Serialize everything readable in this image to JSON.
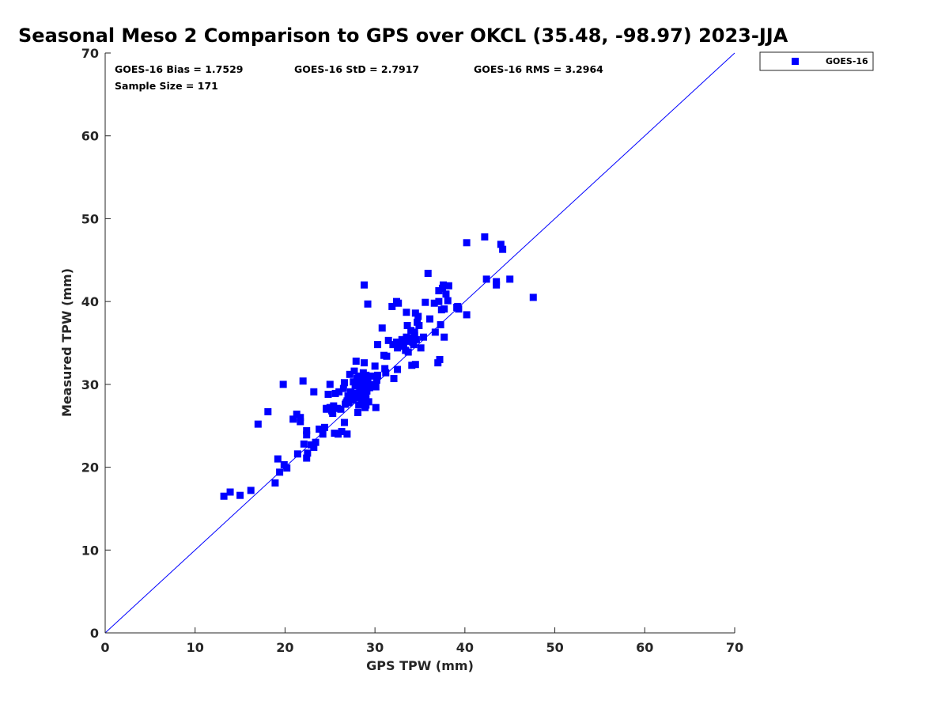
{
  "chart_data": {
    "type": "scatter",
    "title": "Seasonal Meso 2 Comparison to GPS over OKCL (35.48, -98.97) 2023-JJA",
    "xlabel": "GPS TPW (mm)",
    "ylabel": "Measured TPW (mm)",
    "xlim": [
      0,
      70
    ],
    "ylim": [
      0,
      70
    ],
    "xticks": [
      0,
      10,
      20,
      30,
      40,
      50,
      60,
      70
    ],
    "yticks": [
      0,
      10,
      20,
      30,
      40,
      50,
      60,
      70
    ],
    "grid": false,
    "legend_position": "top-right outside",
    "reference_line": {
      "label": "1:1",
      "from": [
        0,
        0
      ],
      "to": [
        70,
        70
      ],
      "color": "#0000ff"
    },
    "stats": {
      "bias": "GOES-16 Bias = 1.7529",
      "std": "GOES-16 StD = 2.7917",
      "rms": "GOES-16 RMS = 3.2964",
      "sample": "Sample Size = 171"
    },
    "series": [
      {
        "name": "GOES-16",
        "color": "#0000ff",
        "marker": "square",
        "points": [
          [
            13.2,
            16.5
          ],
          [
            13.9,
            17.0
          ],
          [
            15.0,
            16.6
          ],
          [
            16.2,
            17.2
          ],
          [
            17.0,
            25.2
          ],
          [
            18.1,
            26.7
          ],
          [
            18.9,
            18.1
          ],
          [
            19.2,
            21.0
          ],
          [
            19.4,
            19.4
          ],
          [
            19.8,
            30.0
          ],
          [
            19.9,
            20.3
          ],
          [
            20.2,
            19.9
          ],
          [
            20.9,
            25.8
          ],
          [
            21.3,
            26.4
          ],
          [
            21.4,
            21.6
          ],
          [
            21.7,
            25.5
          ],
          [
            21.7,
            26.0
          ],
          [
            22.0,
            30.4
          ],
          [
            22.1,
            22.8
          ],
          [
            22.4,
            24.4
          ],
          [
            22.4,
            21.1
          ],
          [
            22.4,
            23.9
          ],
          [
            22.5,
            21.7
          ],
          [
            22.9,
            22.7
          ],
          [
            23.2,
            29.1
          ],
          [
            23.2,
            22.4
          ],
          [
            23.4,
            23.0
          ],
          [
            23.8,
            24.6
          ],
          [
            24.2,
            24.0
          ],
          [
            24.4,
            24.8
          ],
          [
            24.6,
            27.1
          ],
          [
            24.8,
            28.8
          ],
          [
            25.0,
            30.0
          ],
          [
            25.0,
            27.2
          ],
          [
            25.2,
            26.8
          ],
          [
            25.3,
            26.5
          ],
          [
            25.4,
            27.4
          ],
          [
            25.5,
            24.1
          ],
          [
            25.6,
            28.9
          ],
          [
            25.9,
            24.0
          ],
          [
            26.0,
            29.1
          ],
          [
            26.2,
            27.0
          ],
          [
            26.3,
            24.3
          ],
          [
            26.5,
            29.5
          ],
          [
            26.6,
            25.4
          ],
          [
            26.6,
            30.2
          ],
          [
            26.7,
            27.6
          ],
          [
            26.9,
            24.0
          ],
          [
            26.9,
            28.0
          ],
          [
            27.0,
            28.6
          ],
          [
            27.1,
            27.8
          ],
          [
            27.2,
            31.2
          ],
          [
            27.3,
            29.1
          ],
          [
            27.5,
            28.1
          ],
          [
            27.6,
            30.3
          ],
          [
            27.7,
            31.6
          ],
          [
            27.8,
            28.9
          ],
          [
            27.8,
            29.8
          ],
          [
            27.9,
            32.8
          ],
          [
            28.0,
            30.7
          ],
          [
            28.0,
            28.4
          ],
          [
            28.1,
            26.6
          ],
          [
            28.1,
            30.0
          ],
          [
            28.2,
            27.5
          ],
          [
            28.2,
            31.0
          ],
          [
            28.3,
            29.5
          ],
          [
            28.4,
            28.9
          ],
          [
            28.4,
            30.5
          ],
          [
            28.5,
            27.9
          ],
          [
            28.5,
            29.3
          ],
          [
            28.6,
            28.3
          ],
          [
            28.7,
            31.4
          ],
          [
            28.7,
            30.2
          ],
          [
            28.8,
            32.6
          ],
          [
            28.8,
            42.0
          ],
          [
            28.9,
            27.2
          ],
          [
            28.9,
            30.9
          ],
          [
            28.9,
            29.9
          ],
          [
            29.0,
            28.6
          ],
          [
            29.0,
            27.5
          ],
          [
            29.0,
            31.1
          ],
          [
            29.1,
            29.2
          ],
          [
            29.2,
            30.3
          ],
          [
            29.2,
            39.7
          ],
          [
            29.3,
            27.9
          ],
          [
            29.4,
            29.6
          ],
          [
            29.7,
            31.0
          ],
          [
            29.8,
            30.0
          ],
          [
            30.0,
            32.2
          ],
          [
            30.1,
            29.7
          ],
          [
            30.1,
            27.2
          ],
          [
            30.2,
            30.5
          ],
          [
            30.3,
            31.1
          ],
          [
            30.3,
            34.8
          ],
          [
            30.8,
            36.8
          ],
          [
            31.0,
            33.5
          ],
          [
            31.1,
            31.9
          ],
          [
            31.2,
            31.4
          ],
          [
            31.5,
            35.3
          ],
          [
            31.9,
            39.4
          ],
          [
            32.0,
            34.8
          ],
          [
            32.1,
            30.7
          ],
          [
            32.4,
            40.0
          ],
          [
            32.4,
            35.1
          ],
          [
            32.5,
            31.8
          ],
          [
            32.5,
            34.4
          ],
          [
            32.6,
            39.8
          ],
          [
            32.7,
            35.0
          ],
          [
            32.9,
            34.6
          ],
          [
            33.0,
            35.4
          ],
          [
            33.1,
            35.0
          ],
          [
            33.2,
            34.7
          ],
          [
            33.4,
            34.1
          ],
          [
            33.5,
            35.7
          ],
          [
            33.5,
            38.7
          ],
          [
            33.6,
            37.1
          ],
          [
            33.7,
            33.9
          ],
          [
            33.9,
            35.6
          ],
          [
            34.0,
            36.5
          ],
          [
            34.1,
            32.3
          ],
          [
            34.2,
            35.1
          ],
          [
            34.3,
            34.8
          ],
          [
            34.4,
            35.9
          ],
          [
            34.4,
            36.3
          ],
          [
            34.5,
            38.6
          ],
          [
            34.5,
            32.4
          ],
          [
            34.6,
            35.4
          ],
          [
            34.7,
            37.5
          ],
          [
            34.8,
            38.2
          ],
          [
            34.9,
            37.1
          ],
          [
            35.1,
            34.4
          ],
          [
            35.4,
            35.7
          ],
          [
            35.6,
            39.9
          ],
          [
            35.9,
            43.4
          ],
          [
            36.6,
            39.8
          ],
          [
            36.7,
            36.3
          ],
          [
            37.0,
            32.6
          ],
          [
            37.1,
            41.3
          ],
          [
            37.1,
            40.0
          ],
          [
            37.2,
            33.0
          ],
          [
            37.3,
            37.2
          ],
          [
            37.4,
            39.0
          ],
          [
            37.5,
            41.6
          ],
          [
            37.6,
            42.0
          ],
          [
            37.7,
            39.1
          ],
          [
            37.7,
            35.7
          ],
          [
            37.9,
            40.9
          ],
          [
            38.1,
            40.1
          ],
          [
            38.2,
            41.9
          ],
          [
            39.1,
            39.3
          ],
          [
            39.2,
            39.4
          ],
          [
            39.3,
            39.1
          ],
          [
            40.2,
            38.4
          ],
          [
            40.2,
            47.1
          ],
          [
            42.2,
            47.8
          ],
          [
            42.4,
            42.7
          ],
          [
            43.5,
            42.0
          ],
          [
            43.5,
            42.4
          ],
          [
            44.0,
            46.9
          ],
          [
            44.2,
            46.3
          ],
          [
            45.0,
            42.7
          ],
          [
            47.6,
            40.5
          ],
          [
            24.6,
            27.0
          ],
          [
            27.4,
            28.5
          ],
          [
            28.6,
            30.6
          ],
          [
            29.5,
            29.8
          ],
          [
            26.8,
            27.8
          ],
          [
            31.3,
            33.4
          ],
          [
            33.8,
            35.2
          ],
          [
            36.1,
            37.9
          ],
          [
            25.8,
            27.1
          ]
        ]
      }
    ]
  }
}
